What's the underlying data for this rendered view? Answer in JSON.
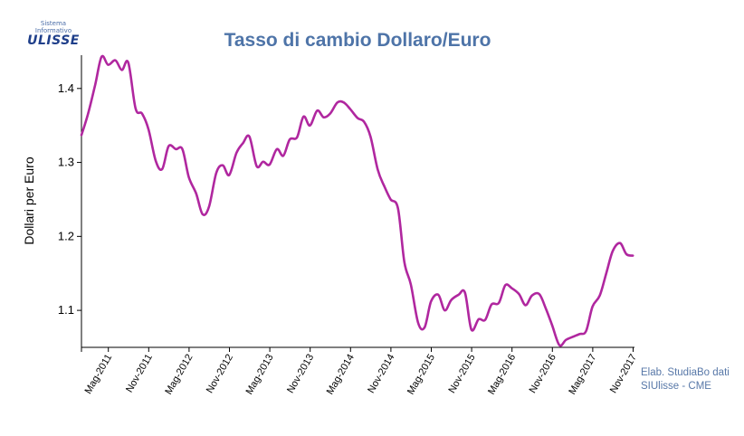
{
  "logo": {
    "line1": "Sistema",
    "line2": "Informativo",
    "name": "ULISSE"
  },
  "source_line1": "Elab. StudiaBo dati",
  "source_line2": "SIUlisse - CME",
  "colors": {
    "line": "#b0279f",
    "title": "#4e74a8",
    "source": "#5878a8"
  },
  "chart_data": {
    "type": "line",
    "title": "Tasso di cambio Dollaro/Euro",
    "xlabel": "",
    "ylabel": "Dollari per Euro",
    "ylim": [
      1.05,
      1.445
    ],
    "y_ticks": [
      1.1,
      1.2,
      1.3,
      1.4
    ],
    "y_tick_labels": [
      "1.1",
      "1.2",
      "1.3",
      "1.4"
    ],
    "x_tick_labels": [
      "Mag-2011",
      "Nov-2011",
      "Mag-2012",
      "Nov-2012",
      "Mag-2013",
      "Nov-2013",
      "Mag-2014",
      "Nov-2014",
      "Mag-2015",
      "Nov-2015",
      "Mag-2016",
      "Nov-2016",
      "Mag-2017",
      "Nov-2017"
    ],
    "grid": false,
    "legend": "none",
    "series": [
      {
        "values": [
          [
            2011.0,
            1.337
          ],
          [
            2011.08,
            1.365
          ],
          [
            2011.17,
            1.405
          ],
          [
            2011.25,
            1.443
          ],
          [
            2011.33,
            1.432
          ],
          [
            2011.42,
            1.438
          ],
          [
            2011.5,
            1.425
          ],
          [
            2011.58,
            1.435
          ],
          [
            2011.67,
            1.373
          ],
          [
            2011.75,
            1.366
          ],
          [
            2011.83,
            1.345
          ],
          [
            2011.92,
            1.302
          ],
          [
            2012.0,
            1.291
          ],
          [
            2012.08,
            1.322
          ],
          [
            2012.17,
            1.318
          ],
          [
            2012.25,
            1.318
          ],
          [
            2012.33,
            1.28
          ],
          [
            2012.42,
            1.258
          ],
          [
            2012.5,
            1.23
          ],
          [
            2012.58,
            1.24
          ],
          [
            2012.67,
            1.286
          ],
          [
            2012.75,
            1.296
          ],
          [
            2012.83,
            1.283
          ],
          [
            2012.92,
            1.313
          ],
          [
            2013.0,
            1.326
          ],
          [
            2013.08,
            1.335
          ],
          [
            2013.17,
            1.295
          ],
          [
            2013.25,
            1.301
          ],
          [
            2013.33,
            1.297
          ],
          [
            2013.42,
            1.318
          ],
          [
            2013.5,
            1.309
          ],
          [
            2013.58,
            1.331
          ],
          [
            2013.67,
            1.334
          ],
          [
            2013.75,
            1.362
          ],
          [
            2013.83,
            1.35
          ],
          [
            2013.92,
            1.37
          ],
          [
            2014.0,
            1.361
          ],
          [
            2014.08,
            1.366
          ],
          [
            2014.17,
            1.381
          ],
          [
            2014.25,
            1.381
          ],
          [
            2014.33,
            1.372
          ],
          [
            2014.42,
            1.36
          ],
          [
            2014.5,
            1.355
          ],
          [
            2014.58,
            1.335
          ],
          [
            2014.67,
            1.29
          ],
          [
            2014.75,
            1.268
          ],
          [
            2014.83,
            1.25
          ],
          [
            2014.92,
            1.238
          ],
          [
            2015.0,
            1.165
          ],
          [
            2015.08,
            1.135
          ],
          [
            2015.17,
            1.083
          ],
          [
            2015.25,
            1.077
          ],
          [
            2015.33,
            1.112
          ],
          [
            2015.42,
            1.121
          ],
          [
            2015.5,
            1.1
          ],
          [
            2015.58,
            1.114
          ],
          [
            2015.67,
            1.121
          ],
          [
            2015.75,
            1.124
          ],
          [
            2015.83,
            1.074
          ],
          [
            2015.92,
            1.088
          ],
          [
            2016.0,
            1.087
          ],
          [
            2016.08,
            1.108
          ],
          [
            2016.17,
            1.11
          ],
          [
            2016.25,
            1.134
          ],
          [
            2016.33,
            1.13
          ],
          [
            2016.42,
            1.122
          ],
          [
            2016.5,
            1.107
          ],
          [
            2016.58,
            1.12
          ],
          [
            2016.67,
            1.122
          ],
          [
            2016.75,
            1.103
          ],
          [
            2016.83,
            1.08
          ],
          [
            2016.92,
            1.053
          ],
          [
            2017.0,
            1.06
          ],
          [
            2017.08,
            1.064
          ],
          [
            2017.17,
            1.068
          ],
          [
            2017.25,
            1.072
          ],
          [
            2017.33,
            1.105
          ],
          [
            2017.42,
            1.12
          ],
          [
            2017.5,
            1.15
          ],
          [
            2017.58,
            1.18
          ],
          [
            2017.67,
            1.191
          ],
          [
            2017.75,
            1.176
          ],
          [
            2017.83,
            1.174
          ]
        ]
      }
    ]
  }
}
